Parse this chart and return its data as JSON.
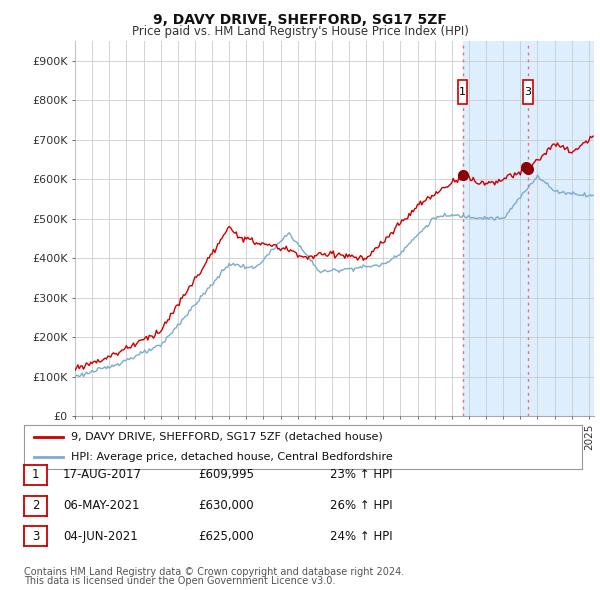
{
  "title": "9, DAVY DRIVE, SHEFFORD, SG17 5ZF",
  "subtitle": "Price paid vs. HM Land Registry's House Price Index (HPI)",
  "ylim": [
    0,
    950000
  ],
  "yticks": [
    0,
    100000,
    200000,
    300000,
    400000,
    500000,
    600000,
    700000,
    800000,
    900000
  ],
  "ytick_labels": [
    "£0",
    "£100K",
    "£200K",
    "£300K",
    "£400K",
    "£500K",
    "£600K",
    "£700K",
    "£800K",
    "£900K"
  ],
  "legend_line1": "9, DAVY DRIVE, SHEFFORD, SG17 5ZF (detached house)",
  "legend_line2": "HPI: Average price, detached house, Central Bedfordshire",
  "transactions": [
    {
      "num": 1,
      "date": "17-AUG-2017",
      "price": "£609,995",
      "hpi": "23% ↑ HPI",
      "year": 2017.63,
      "price_val": 609995
    },
    {
      "num": 2,
      "date": "06-MAY-2021",
      "price": "£630,000",
      "hpi": "26% ↑ HPI",
      "year": 2021.35,
      "price_val": 630000
    },
    {
      "num": 3,
      "date": "04-JUN-2021",
      "price": "£625,000",
      "hpi": "24% ↑ HPI",
      "year": 2021.43,
      "price_val": 625000
    }
  ],
  "footer1": "Contains HM Land Registry data © Crown copyright and database right 2024.",
  "footer2": "This data is licensed under the Open Government Licence v3.0.",
  "red_color": "#cc0000",
  "blue_color": "#7aadce",
  "dot_color": "#8b0000",
  "shade_color": "#ddeeff",
  "vline_color": "#e87070",
  "background": "#ffffff",
  "grid_color": "#cccccc",
  "xlim_start": 1995,
  "xlim_end": 2025.3
}
